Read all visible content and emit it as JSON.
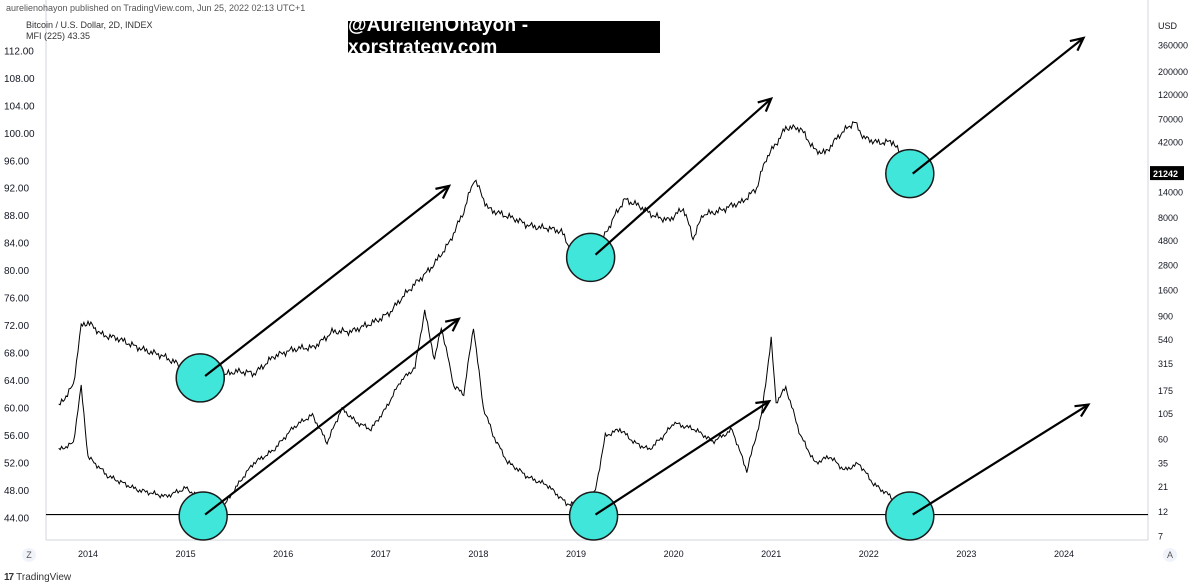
{
  "header": {
    "published_line": "aurelienohayon published on TradingView.com, Jun 25, 2022 02:13 UTC+1"
  },
  "legend": {
    "symbol_line": "Bitcoin / U.S. Dollar, 2D, INDEX",
    "indicator_line": "MFI (225)  43.35"
  },
  "banner": {
    "text": "@AurelienOhayon - xorstrategy.com"
  },
  "footer": {
    "brand": "TradingView",
    "icon_text": "17"
  },
  "buttons": {
    "zoom_label": "Z",
    "auto_label": "A"
  },
  "colors": {
    "line": "#000000",
    "circle_fill": "#40e6da",
    "circle_stroke": "#1a1a1a",
    "price_tag_bg": "#000000"
  },
  "chart_data": [
    {
      "type": "line",
      "name": "Bitcoin / U.S. Dollar price (log scale)",
      "scale": "log",
      "right_axis": {
        "label": "USD",
        "ticks": [
          7,
          12,
          21,
          35,
          60,
          105,
          175,
          315,
          540,
          900,
          1600,
          2800,
          4800,
          8000,
          14000,
          42000,
          70000,
          120000,
          200000,
          360000
        ]
      },
      "last_price": 21242,
      "x": [
        2013.7,
        2013.85,
        2013.93,
        2014.0,
        2014.15,
        2014.3,
        2014.45,
        2014.6,
        2014.75,
        2014.9,
        2015.05,
        2015.15,
        2015.3,
        2015.5,
        2015.7,
        2015.9,
        2016.1,
        2016.3,
        2016.5,
        2016.7,
        2016.9,
        2017.1,
        2017.3,
        2017.5,
        2017.7,
        2017.85,
        2017.96,
        2018.1,
        2018.3,
        2018.5,
        2018.7,
        2018.85,
        2018.96,
        2019.1,
        2019.25,
        2019.4,
        2019.5,
        2019.65,
        2019.8,
        2019.95,
        2020.1,
        2020.2,
        2020.3,
        2020.5,
        2020.7,
        2020.85,
        2020.95,
        2021.05,
        2021.15,
        2021.3,
        2021.45,
        2021.55,
        2021.7,
        2021.85,
        2021.95,
        2022.1,
        2022.25,
        2022.35,
        2022.42,
        2022.47
      ],
      "y": [
        125,
        200,
        700,
        800,
        600,
        560,
        480,
        420,
        380,
        320,
        250,
        230,
        240,
        260,
        250,
        380,
        420,
        450,
        650,
        620,
        780,
        1000,
        1600,
        2600,
        4500,
        9000,
        18500,
        10000,
        8000,
        6700,
        6500,
        6000,
        3600,
        3500,
        4500,
        8500,
        11500,
        10000,
        8000,
        7300,
        9500,
        5000,
        8800,
        9300,
        11000,
        15000,
        29000,
        42000,
        58000,
        57000,
        35000,
        32000,
        48000,
        64000,
        47000,
        42000,
        43000,
        30000,
        21000,
        21242
      ]
    },
    {
      "type": "line",
      "name": "MFI (225)",
      "left_axis": {
        "ylim": [
          41.5,
          114
        ],
        "ticks": [
          44,
          48,
          52,
          56,
          60,
          64,
          68,
          72,
          76,
          80,
          84,
          88,
          92,
          96,
          100,
          104,
          108,
          112
        ]
      },
      "threshold": 44.5,
      "x": [
        2013.7,
        2013.85,
        2013.93,
        2014.0,
        2014.2,
        2014.5,
        2014.8,
        2015.0,
        2015.2,
        2015.3,
        2015.5,
        2015.7,
        2015.9,
        2016.1,
        2016.3,
        2016.45,
        2016.6,
        2016.75,
        2016.9,
        2017.05,
        2017.2,
        2017.35,
        2017.45,
        2017.55,
        2017.62,
        2017.75,
        2017.85,
        2017.95,
        2018.05,
        2018.15,
        2018.3,
        2018.5,
        2018.7,
        2018.9,
        2019.0,
        2019.1,
        2019.2,
        2019.3,
        2019.45,
        2019.6,
        2019.75,
        2019.9,
        2020.0,
        2020.2,
        2020.4,
        2020.6,
        2020.75,
        2020.9,
        2021.0,
        2021.05,
        2021.15,
        2021.3,
        2021.45,
        2021.6,
        2021.75,
        2021.9,
        2022.05,
        2022.2,
        2022.3,
        2022.42,
        2022.47
      ],
      "y": [
        54,
        55,
        63,
        53,
        50,
        48,
        47,
        48.5,
        46.5,
        44,
        48,
        52,
        54,
        57,
        59,
        55,
        60,
        58,
        57,
        60,
        64,
        66,
        74,
        67,
        72,
        63,
        62,
        72,
        60,
        56,
        52,
        50,
        49,
        46,
        46,
        43.2,
        48,
        56,
        57,
        55,
        54,
        56,
        58,
        57,
        55,
        57,
        51,
        59,
        70,
        61,
        63,
        56,
        52,
        53,
        51,
        52,
        49,
        47.5,
        46,
        44.5,
        43.35
      ]
    }
  ],
  "time_axis": {
    "labels": [
      "2014",
      "2015",
      "2016",
      "2017",
      "2018",
      "2019",
      "2020",
      "2021",
      "2022",
      "2023",
      "2024"
    ]
  },
  "annotations": {
    "circles": [
      {
        "x": 2015.15,
        "price": 230
      },
      {
        "x": 2019.15,
        "price": 3300
      },
      {
        "x": 2022.42,
        "price": 21000
      },
      {
        "x": 2015.18,
        "mfi": 44.3
      },
      {
        "x": 2019.18,
        "mfi": 44.3
      },
      {
        "x": 2022.42,
        "mfi": 44.3
      }
    ],
    "arrows": [
      {
        "x1": 2015.2,
        "price1": 240,
        "x2": 2017.7,
        "price2": 16000
      },
      {
        "x1": 2019.2,
        "price1": 3500,
        "x2": 2021.0,
        "price2": 110000
      },
      {
        "x1": 2022.45,
        "price1": 21000,
        "x2": 2024.2,
        "price2": 600000
      },
      {
        "x1": 2015.2,
        "mfi1": 44.5,
        "x2": 2017.8,
        "mfi2": 73
      },
      {
        "x1": 2019.2,
        "mfi1": 44.5,
        "x2": 2020.98,
        "mfi2": 61
      },
      {
        "x1": 2022.45,
        "mfi1": 44.5,
        "x2": 2024.25,
        "mfi2": 60.5
      }
    ]
  }
}
